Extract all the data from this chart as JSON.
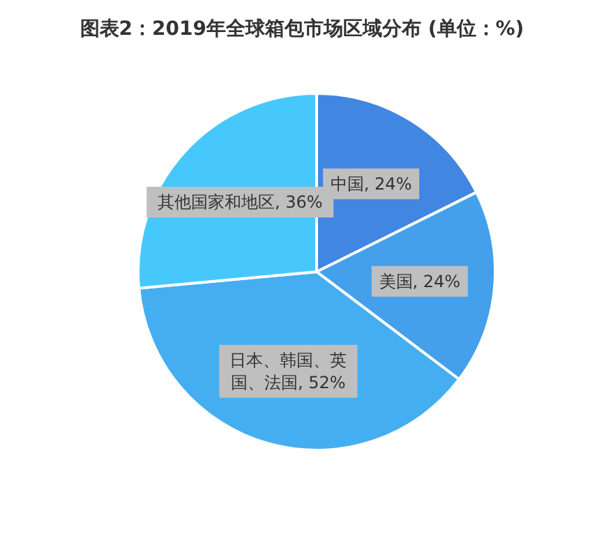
{
  "chart_data": {
    "type": "pie",
    "title": "图表2：2019年全球箱包市场区域分布 (单位：%)",
    "categories": [
      "中国",
      "美国",
      "日本、韩国、英国、法国",
      "其他国家和地区"
    ],
    "values": [
      24,
      24,
      52,
      36
    ],
    "value_labels": [
      "24%",
      "24%",
      "52%",
      "36%"
    ],
    "colors": [
      "#4186e0",
      "#44a0ea",
      "#45aef0",
      "#47c8fc"
    ],
    "legend": false
  }
}
